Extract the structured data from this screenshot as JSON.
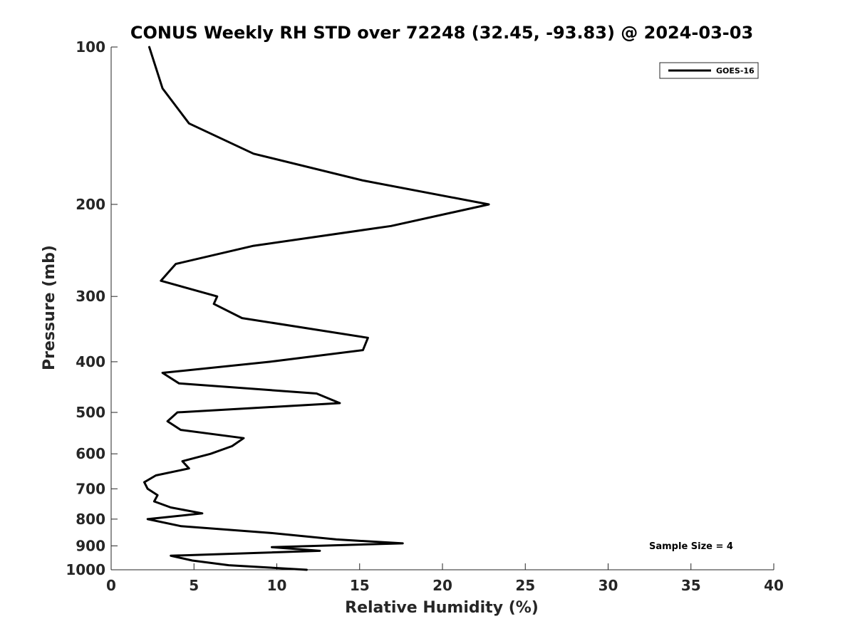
{
  "chart_data": {
    "type": "line",
    "title": "CONUS Weekly RH STD over 72248 (32.45, -93.83) @ 2024-03-03",
    "xlabel": "Relative Humidity (%)",
    "ylabel": "Pressure (mb)",
    "xlim": [
      0,
      40
    ],
    "ylim": [
      100,
      1000
    ],
    "yscale": "log",
    "yreversed": true,
    "xticks": [
      0,
      5,
      10,
      15,
      20,
      25,
      30,
      35,
      40
    ],
    "yticks": [
      100,
      200,
      300,
      400,
      500,
      600,
      700,
      800,
      900,
      1000
    ],
    "grid": false,
    "legend_position": "top-right",
    "annotation": "Sample Size = 4",
    "colors": {
      "line": "#000000",
      "axis": "#262626"
    },
    "series": [
      {
        "name": "GOES-16",
        "x": [
          2.3,
          3.1,
          4.7,
          8.6,
          15.2,
          22.8,
          16.9,
          8.6,
          3.9,
          3.0,
          6.4,
          6.2,
          7.9,
          15.5,
          15.2,
          9.6,
          3.1,
          4.1,
          12.4,
          13.8,
          4.0,
          3.4,
          4.2,
          8.0,
          7.3,
          6.0,
          4.3,
          4.7,
          2.7,
          2.0,
          2.2,
          2.8,
          2.6,
          3.6,
          5.5,
          2.2,
          4.2,
          9.6,
          13.6,
          17.6,
          9.7,
          12.6,
          3.6,
          4.9,
          7.1,
          11.8
        ],
        "y": [
          100,
          120,
          140,
          160,
          180,
          200,
          220,
          240,
          260,
          280,
          300,
          310,
          330,
          360,
          380,
          400,
          420,
          440,
          460,
          480,
          500,
          520,
          540,
          560,
          580,
          600,
          620,
          640,
          660,
          680,
          700,
          720,
          740,
          760,
          780,
          800,
          825,
          850,
          875,
          890,
          905,
          920,
          940,
          960,
          980,
          1000
        ]
      }
    ]
  }
}
